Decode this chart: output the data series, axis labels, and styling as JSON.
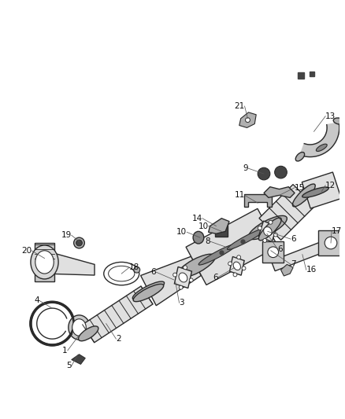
{
  "bg_color": "#ffffff",
  "fig_width": 4.38,
  "fig_height": 5.33,
  "dpi": 100,
  "lc": "#2a2a2a",
  "lw": 1.0,
  "lgray": "#b0b0b0",
  "dgray": "#444444",
  "mgray": "#888888",
  "fill1": "#e0e0e0",
  "fill2": "#c8c8c8",
  "fill3": "#d8d8d8",
  "label_fs": 7.5
}
